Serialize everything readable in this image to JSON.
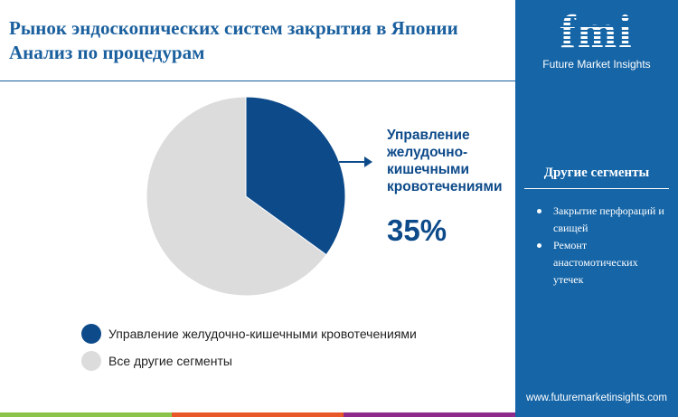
{
  "title": [
    "Рынок эндоскопических систем закрытия в Японии",
    "Анализ по процедурам"
  ],
  "logo": {
    "mark": "fmi",
    "name": "Future Market Insights"
  },
  "side_panel": {
    "heading": "Другие сегменты",
    "items": [
      "Закрытие перфораций и свищей",
      "Ремонт анастомотических утечек"
    ],
    "url": "www.futuremarketinsights.com"
  },
  "callout": {
    "label": "Управление желудочно-кишечными кровотечениями",
    "value": "35%"
  },
  "colors": {
    "primary": "#0d4a8a",
    "other": "#dcdcdc",
    "panel": "#1565a7"
  },
  "chart_data": {
    "type": "pie",
    "categories": [
      "Управление желудочно-кишечными кровотечениями",
      "Все другие сегменты"
    ],
    "values": [
      35,
      65
    ],
    "legend": "bottom"
  }
}
